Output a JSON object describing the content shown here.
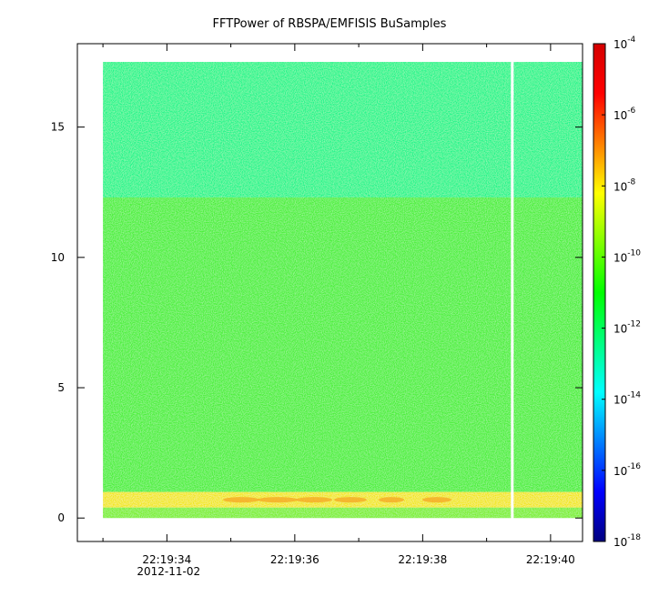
{
  "chart_data": {
    "type": "heatmap",
    "title": "FFTPower of RBSPA/EMFISIS  BuSamples",
    "xlabel": "",
    "ylabel": "",
    "x_axis": {
      "type": "time",
      "range": [
        "22:19:32.6",
        "22:19:40.5"
      ],
      "ticks": [
        {
          "value": 34,
          "label": "22:19:34",
          "sublabel": "2012-11-02"
        },
        {
          "value": 36,
          "label": "22:19:36",
          "sublabel": ""
        },
        {
          "value": 38,
          "label": "22:19:38",
          "sublabel": ""
        },
        {
          "value": 40,
          "label": "22:19:40",
          "sublabel": ""
        }
      ],
      "minor_ticks": [
        33,
        35,
        37,
        39
      ]
    },
    "y_axis": {
      "range": [
        -0.9,
        18.2
      ],
      "ticks": [
        {
          "value": 0,
          "label": "0"
        },
        {
          "value": 5,
          "label": "5"
        },
        {
          "value": 10,
          "label": "10"
        },
        {
          "value": 15,
          "label": "15"
        }
      ]
    },
    "colorbar": {
      "scale": "log",
      "range": [
        1e-18,
        0.0001
      ],
      "ticks": [
        {
          "exp": -4,
          "base": "10",
          "label": "-4"
        },
        {
          "exp": -6,
          "base": "10",
          "label": "-6"
        },
        {
          "exp": -8,
          "base": "10",
          "label": "-8"
        },
        {
          "exp": -10,
          "base": "10",
          "label": "-10"
        },
        {
          "exp": -12,
          "base": "10",
          "label": "-12"
        },
        {
          "exp": -14,
          "base": "10",
          "label": "-14"
        },
        {
          "exp": -16,
          "base": "10",
          "label": "-16"
        },
        {
          "exp": -18,
          "base": "10",
          "label": "-18"
        }
      ],
      "stops": [
        "#00007f",
        "#0000ff",
        "#007fff",
        "#00ffff",
        "#00ff80",
        "#00ff00",
        "#80ff00",
        "#ffff00",
        "#ff8000",
        "#ff0000",
        "#d40000"
      ]
    },
    "data_extent": {
      "x": [
        33.0,
        40.5
      ],
      "y": [
        0,
        17.5
      ]
    },
    "gap": {
      "x_start": 39.38,
      "x_end": 39.42
    },
    "bands": [
      {
        "y_range": [
          12.3,
          17.5
        ],
        "log10_power": -12.3,
        "color": "#22f58c"
      },
      {
        "y_range": [
          1.0,
          12.3
        ],
        "log10_power": -10.5,
        "color": "#4ef03c"
      },
      {
        "y_range": [
          0.4,
          1.0
        ],
        "log10_power": -8.5,
        "color": "#f2e81c"
      },
      {
        "y_range": [
          0,
          0.4
        ],
        "log10_power": -9.5,
        "color": "#7ef030"
      }
    ]
  }
}
